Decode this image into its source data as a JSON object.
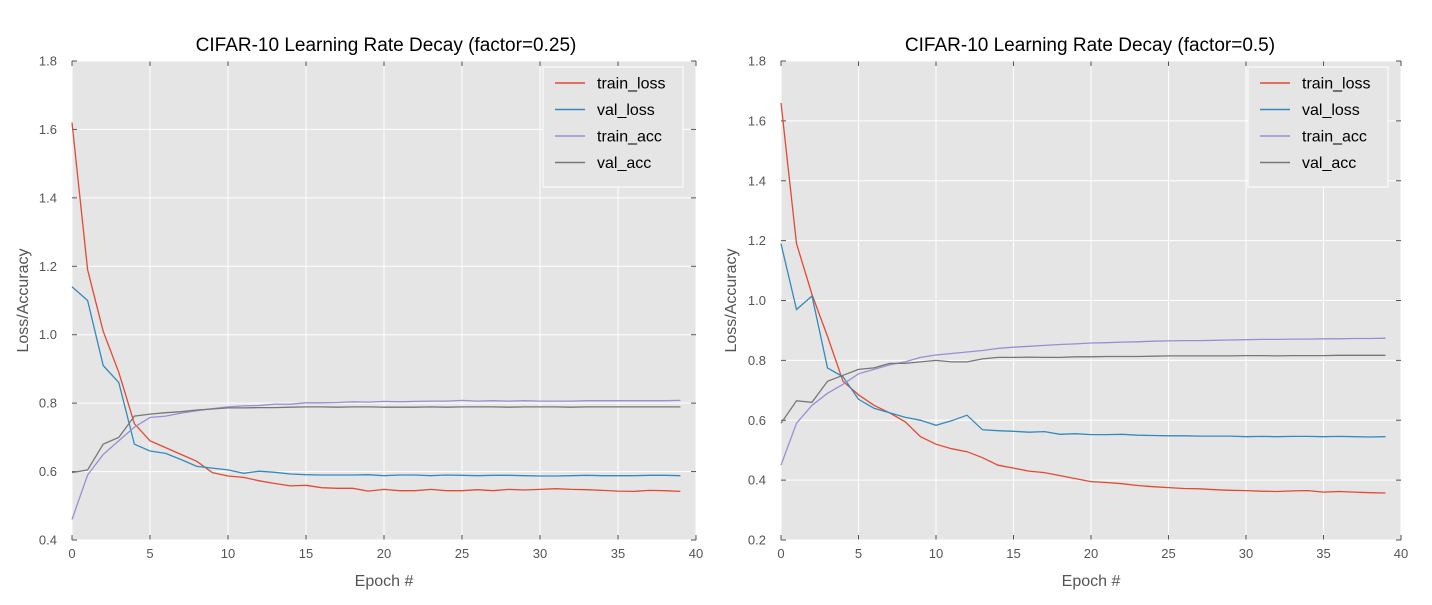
{
  "chart_data": [
    {
      "type": "line",
      "title": "CIFAR-10 Learning Rate Decay (factor=0.25)",
      "xlabel": "Epoch #",
      "ylabel": "Loss/Accuracy",
      "xlim": [
        0,
        40
      ],
      "ylim": [
        0.4,
        1.8
      ],
      "xticks": [
        "0",
        "5",
        "10",
        "15",
        "20",
        "25",
        "30",
        "35",
        "40"
      ],
      "yticks": [
        "0.4",
        "0.6",
        "0.8",
        "1.0",
        "1.2",
        "1.4",
        "1.6",
        "1.8"
      ],
      "grid": true,
      "legend": "top-right",
      "x": [
        0,
        1,
        2,
        3,
        4,
        5,
        6,
        7,
        8,
        9,
        10,
        11,
        12,
        13,
        14,
        15,
        16,
        17,
        18,
        19,
        20,
        21,
        22,
        23,
        24,
        25,
        26,
        27,
        28,
        29,
        30,
        31,
        32,
        33,
        34,
        35,
        36,
        37,
        38,
        39
      ],
      "series": [
        {
          "name": "train_loss",
          "color": "#e24a33",
          "values": [
            1.62,
            1.19,
            1.01,
            0.89,
            0.74,
            0.69,
            0.67,
            0.65,
            0.63,
            0.597,
            0.587,
            0.583,
            0.573,
            0.565,
            0.558,
            0.56,
            0.553,
            0.551,
            0.551,
            0.543,
            0.548,
            0.544,
            0.544,
            0.548,
            0.544,
            0.544,
            0.547,
            0.544,
            0.548,
            0.546,
            0.548,
            0.55,
            0.548,
            0.547,
            0.545,
            0.543,
            0.542,
            0.545,
            0.544,
            0.542
          ]
        },
        {
          "name": "val_loss",
          "color": "#348abd",
          "values": [
            1.14,
            1.1,
            0.91,
            0.86,
            0.68,
            0.66,
            0.653,
            0.635,
            0.615,
            0.61,
            0.605,
            0.595,
            0.601,
            0.598,
            0.593,
            0.591,
            0.59,
            0.59,
            0.59,
            0.591,
            0.588,
            0.59,
            0.59,
            0.588,
            0.59,
            0.589,
            0.588,
            0.589,
            0.589,
            0.588,
            0.587,
            0.587,
            0.588,
            0.589,
            0.588,
            0.588,
            0.588,
            0.589,
            0.589,
            0.588
          ]
        },
        {
          "name": "train_acc",
          "color": "#988ed5",
          "values": [
            0.46,
            0.59,
            0.65,
            0.69,
            0.73,
            0.758,
            0.762,
            0.771,
            0.778,
            0.784,
            0.789,
            0.792,
            0.793,
            0.797,
            0.797,
            0.801,
            0.801,
            0.802,
            0.804,
            0.803,
            0.805,
            0.804,
            0.805,
            0.806,
            0.806,
            0.808,
            0.806,
            0.807,
            0.806,
            0.807,
            0.806,
            0.806,
            0.806,
            0.807,
            0.807,
            0.807,
            0.807,
            0.807,
            0.807,
            0.808
          ]
        },
        {
          "name": "val_acc",
          "color": "#777777",
          "values": [
            0.597,
            0.605,
            0.68,
            0.7,
            0.762,
            0.768,
            0.772,
            0.775,
            0.78,
            0.783,
            0.786,
            0.786,
            0.787,
            0.787,
            0.788,
            0.789,
            0.789,
            0.788,
            0.789,
            0.789,
            0.788,
            0.788,
            0.788,
            0.789,
            0.788,
            0.789,
            0.789,
            0.789,
            0.788,
            0.789,
            0.789,
            0.789,
            0.788,
            0.789,
            0.789,
            0.789,
            0.789,
            0.789,
            0.789,
            0.789
          ]
        }
      ]
    },
    {
      "type": "line",
      "title": "CIFAR-10 Learning Rate Decay (factor=0.5)",
      "xlabel": "Epoch #",
      "ylabel": "Loss/Accuracy",
      "xlim": [
        0,
        40
      ],
      "ylim": [
        0.2,
        1.8
      ],
      "xticks": [
        "0",
        "5",
        "10",
        "15",
        "20",
        "25",
        "30",
        "35",
        "40"
      ],
      "yticks": [
        "0.2",
        "0.4",
        "0.6",
        "0.8",
        "1.0",
        "1.2",
        "1.4",
        "1.6",
        "1.8"
      ],
      "grid": true,
      "legend": "top-right",
      "x": [
        0,
        1,
        2,
        3,
        4,
        5,
        6,
        7,
        8,
        9,
        10,
        11,
        12,
        13,
        14,
        15,
        16,
        17,
        18,
        19,
        20,
        21,
        22,
        23,
        24,
        25,
        26,
        27,
        28,
        29,
        30,
        31,
        32,
        33,
        34,
        35,
        36,
        37,
        38,
        39
      ],
      "series": [
        {
          "name": "train_loss",
          "color": "#e24a33",
          "values": [
            1.66,
            1.19,
            1.02,
            0.88,
            0.73,
            0.685,
            0.65,
            0.625,
            0.595,
            0.545,
            0.52,
            0.505,
            0.495,
            0.475,
            0.45,
            0.44,
            0.43,
            0.425,
            0.415,
            0.405,
            0.395,
            0.392,
            0.388,
            0.382,
            0.378,
            0.375,
            0.372,
            0.371,
            0.368,
            0.366,
            0.365,
            0.363,
            0.362,
            0.364,
            0.365,
            0.36,
            0.362,
            0.36,
            0.358,
            0.357
          ]
        },
        {
          "name": "val_loss",
          "color": "#348abd",
          "values": [
            1.19,
            0.97,
            1.015,
            0.775,
            0.745,
            0.67,
            0.64,
            0.625,
            0.61,
            0.6,
            0.583,
            0.598,
            0.617,
            0.568,
            0.565,
            0.563,
            0.56,
            0.562,
            0.553,
            0.555,
            0.552,
            0.552,
            0.553,
            0.55,
            0.549,
            0.548,
            0.548,
            0.547,
            0.547,
            0.547,
            0.545,
            0.546,
            0.545,
            0.546,
            0.546,
            0.545,
            0.546,
            0.545,
            0.544,
            0.545
          ]
        },
        {
          "name": "train_acc",
          "color": "#988ed5",
          "values": [
            0.45,
            0.59,
            0.65,
            0.69,
            0.72,
            0.755,
            0.77,
            0.785,
            0.795,
            0.81,
            0.818,
            0.823,
            0.828,
            0.833,
            0.84,
            0.844,
            0.847,
            0.85,
            0.853,
            0.855,
            0.858,
            0.859,
            0.861,
            0.862,
            0.864,
            0.865,
            0.866,
            0.866,
            0.867,
            0.868,
            0.869,
            0.87,
            0.87,
            0.871,
            0.871,
            0.872,
            0.872,
            0.873,
            0.873,
            0.874
          ]
        },
        {
          "name": "val_acc",
          "color": "#777777",
          "values": [
            0.59,
            0.665,
            0.66,
            0.73,
            0.75,
            0.77,
            0.775,
            0.79,
            0.79,
            0.795,
            0.8,
            0.795,
            0.795,
            0.805,
            0.81,
            0.81,
            0.811,
            0.81,
            0.81,
            0.812,
            0.812,
            0.813,
            0.813,
            0.813,
            0.814,
            0.815,
            0.815,
            0.815,
            0.815,
            0.815,
            0.816,
            0.816,
            0.815,
            0.816,
            0.816,
            0.816,
            0.817,
            0.817,
            0.817,
            0.817
          ]
        }
      ]
    }
  ]
}
